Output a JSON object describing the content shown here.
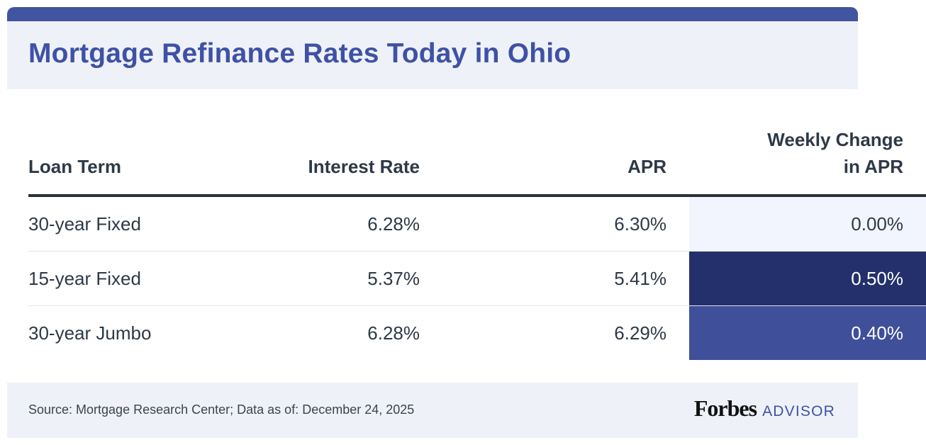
{
  "header": {
    "title": "Mortgage Refinance Rates Today in Ohio"
  },
  "chart_data": {
    "type": "table",
    "columns": [
      "Loan Term",
      "Interest Rate",
      "APR",
      "Weekly Change in APR"
    ],
    "column_header_lines": {
      "weekly_change": [
        "Weekly Change",
        "in APR"
      ]
    },
    "rows": [
      {
        "loan_term": "30-year Fixed",
        "interest_rate": "6.28%",
        "apr": "6.30%",
        "weekly_change": "0.00%",
        "change_bg": "#f2f5fd",
        "change_fg": "#2e3947"
      },
      {
        "loan_term": "15-year Fixed",
        "interest_rate": "5.37%",
        "apr": "5.41%",
        "weekly_change": "0.50%",
        "change_bg": "#23306b",
        "change_fg": "#ffffff"
      },
      {
        "loan_term": "30-year Jumbo",
        "interest_rate": "6.28%",
        "apr": "6.29%",
        "weekly_change": "0.40%",
        "change_bg": "#404f9a",
        "change_fg": "#ffffff"
      }
    ]
  },
  "footer": {
    "source": "Source: Mortgage Research Center; Data as of: December 24, 2025",
    "logo_brand": "Forbes",
    "logo_suffix": "ADVISOR"
  },
  "colors": {
    "accent": "#3f51a6",
    "top_bar": "#4253a0",
    "panel_bg": "#eef2f8",
    "text": "#2e3947"
  }
}
